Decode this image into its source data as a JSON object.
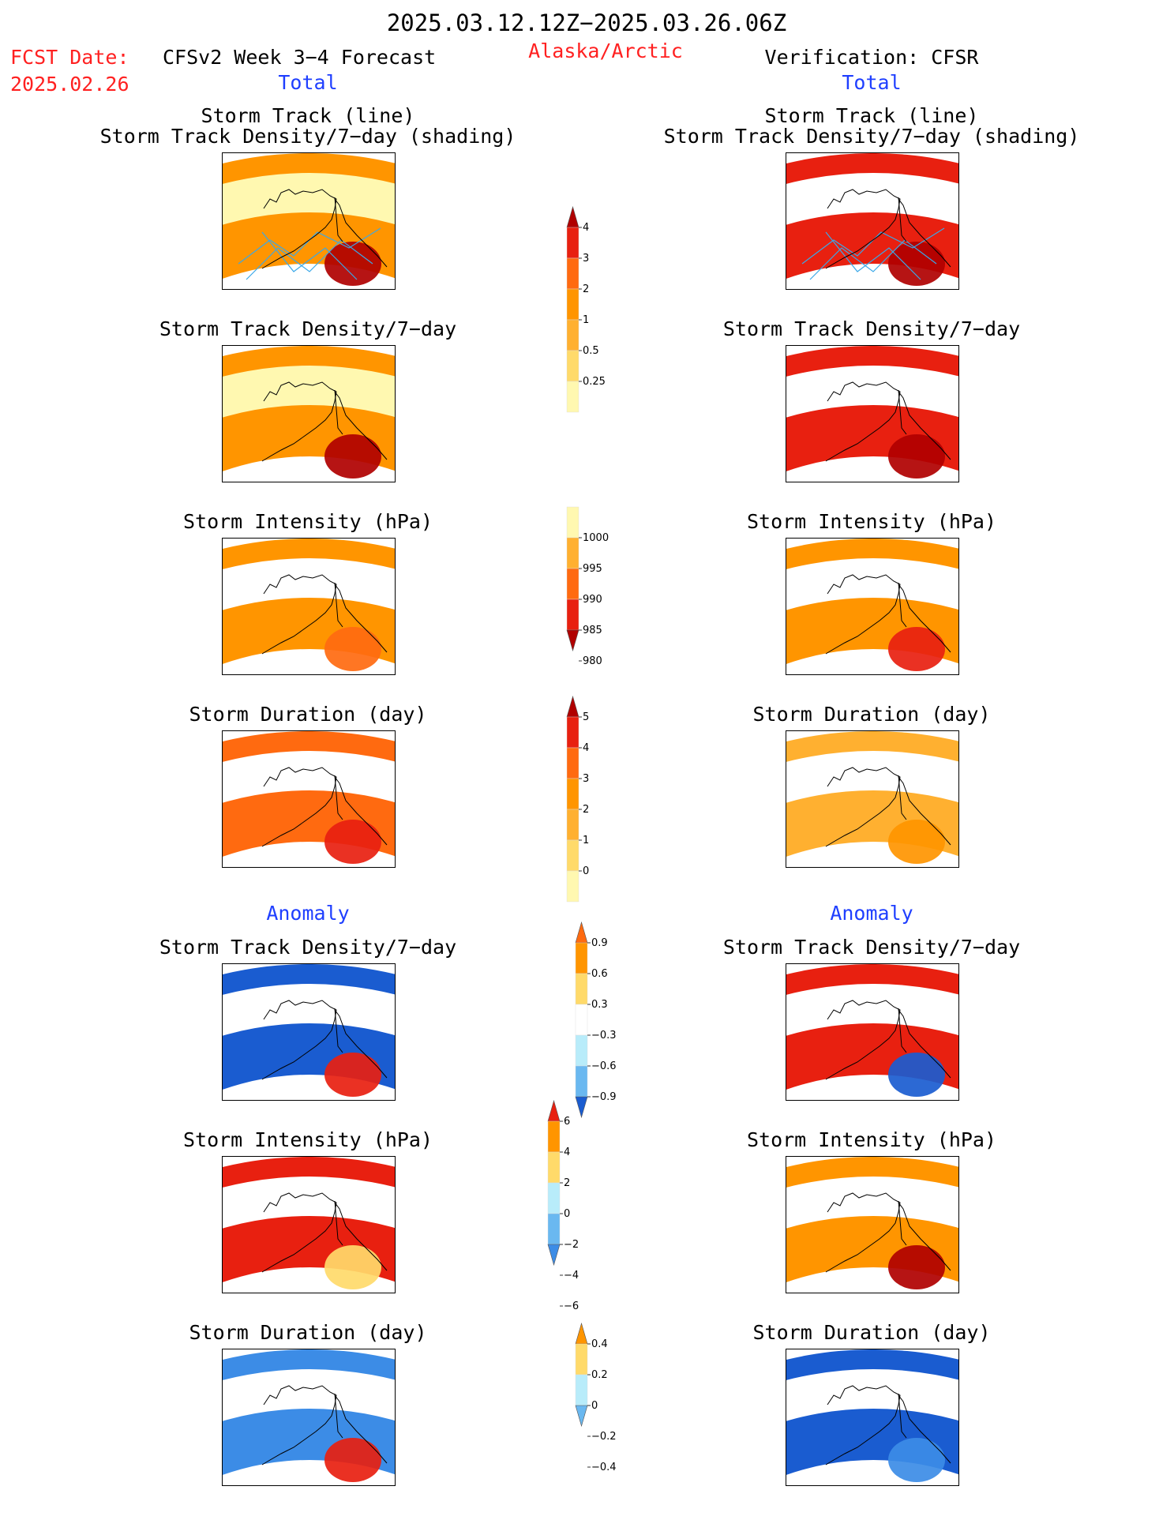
{
  "header": {
    "period": "2025.03.12.12Z−2025.03.26.06Z",
    "fcst_label": "FCST Date:",
    "fcst_date": "2025.02.26",
    "model": "CFSv2 Week 3−4 Forecast",
    "region": "Alaska/Arctic",
    "verification": "Verification: CFSR"
  },
  "sections": {
    "total_left": "Total",
    "total_right": "Total",
    "anomaly_left": "Anomaly",
    "anomaly_right": "Anomaly"
  },
  "panel_titles": {
    "track_line": "Storm Track (line)",
    "track_density_shading": "Storm Track Density/7−day (shading)",
    "track_density": "Storm Track Density/7−day",
    "intensity": "Storm Intensity (hPa)",
    "duration": "Storm Duration (day)"
  },
  "colors": {
    "pale_yellow": "#fff8b0",
    "yellow": "#ffda6a",
    "light_orange": "#ffb030",
    "orange": "#ff9500",
    "dark_orange": "#ff6a10",
    "red": "#e82010",
    "dark_red": "#b00000",
    "light_blue": "#b8ecfa",
    "mid_blue": "#6ab8f0",
    "blue": "#3c8ce6",
    "dark_blue": "#1a5cd0",
    "track_line": "#3aa8e8"
  },
  "chart_data": {
    "type": "heatmap",
    "colorbars": [
      {
        "id": "density_total",
        "ticks": [
          "4",
          "3",
          "2",
          "1",
          "0.5",
          "0.25"
        ],
        "colors": [
          "#b00000",
          "#e82010",
          "#ff6a10",
          "#ff9500",
          "#ffb030",
          "#ffda6a",
          "#fff8b0"
        ],
        "arrow_top": true,
        "arrow_bottom": false
      },
      {
        "id": "intensity_total",
        "ticks": [
          "1000",
          "995",
          "990",
          "985",
          "980"
        ],
        "colors": [
          "#fff8b0",
          "#ffb030",
          "#ff6a10",
          "#e82010",
          "#b00000"
        ],
        "arrow_top": false,
        "arrow_bottom": true
      },
      {
        "id": "duration_total",
        "ticks": [
          "5",
          "4",
          "3",
          "2",
          "1",
          "0"
        ],
        "colors": [
          "#b00000",
          "#e82010",
          "#ff6a10",
          "#ff9500",
          "#ffb030",
          "#ffda6a",
          "#fff8b0"
        ],
        "arrow_top": true,
        "arrow_bottom": false
      },
      {
        "id": "density_anom",
        "ticks": [
          "0.9",
          "0.6",
          "0.3",
          "−0.3",
          "−0.6",
          "−0.9"
        ],
        "colors": [
          "#ff6a10",
          "#ff9500",
          "#ffda6a",
          "#ffffff",
          "#b8ecfa",
          "#6ab8f0",
          "#1a5cd0"
        ],
        "arrow_top": true,
        "arrow_bottom": true
      },
      {
        "id": "intensity_anom",
        "ticks": [
          "6",
          "4",
          "2",
          "0",
          "−2",
          "−4",
          "−6"
        ],
        "colors": [
          "#e82010",
          "#ff9500",
          "#ffda6a",
          "#b8ecfa",
          "#6ab8f0",
          "#3c8ce6"
        ],
        "arrow_top": true,
        "arrow_bottom": true
      },
      {
        "id": "duration_anom",
        "ticks": [
          "0.4",
          "0.2",
          "0",
          "−0.2",
          "−0.4"
        ],
        "colors": [
          "#ff9500",
          "#ffda6a",
          "#b8ecfa",
          "#6ab8f0"
        ],
        "arrow_top": true,
        "arrow_bottom": true
      }
    ],
    "panels": [
      {
        "id": "fcst_track",
        "column": "forecast",
        "dominant": "#ff9500",
        "hot": "#b00000",
        "light": "#fff8b0",
        "tracks": true
      },
      {
        "id": "fcst_density",
        "column": "forecast",
        "dominant": "#ff9500",
        "hot": "#b00000",
        "light": "#fff8b0",
        "tracks": false
      },
      {
        "id": "fcst_intensity",
        "column": "forecast",
        "dominant": "#ff9500",
        "hot": "#ff6a10",
        "light": "#ffffff",
        "tracks": false
      },
      {
        "id": "fcst_duration",
        "column": "forecast",
        "dominant": "#ff6a10",
        "hot": "#e82010",
        "light": "#ffffff",
        "tracks": false
      },
      {
        "id": "fcst_density_anom",
        "column": "forecast",
        "dominant": "#1a5cd0",
        "hot": "#e82010",
        "light": "#ffffff",
        "tracks": false
      },
      {
        "id": "fcst_intensity_anom",
        "column": "forecast",
        "dominant": "#e82010",
        "hot": "#ffda6a",
        "light": "#ffffff",
        "tracks": false
      },
      {
        "id": "fcst_duration_anom",
        "column": "forecast",
        "dominant": "#3c8ce6",
        "hot": "#e82010",
        "light": "#ffffff",
        "tracks": false
      },
      {
        "id": "ver_track",
        "column": "verification",
        "dominant": "#e82010",
        "hot": "#b00000",
        "light": "#ffffff",
        "tracks": true
      },
      {
        "id": "ver_density",
        "column": "verification",
        "dominant": "#e82010",
        "hot": "#b00000",
        "light": "#ffffff",
        "tracks": false
      },
      {
        "id": "ver_intensity",
        "column": "verification",
        "dominant": "#ff9500",
        "hot": "#e82010",
        "light": "#ffffff",
        "tracks": false
      },
      {
        "id": "ver_duration",
        "column": "verification",
        "dominant": "#ffb030",
        "hot": "#ff9500",
        "light": "#ffffff",
        "tracks": false
      },
      {
        "id": "ver_density_anom",
        "column": "verification",
        "dominant": "#e82010",
        "hot": "#1a5cd0",
        "light": "#ffffff",
        "tracks": false
      },
      {
        "id": "ver_intensity_anom",
        "column": "verification",
        "dominant": "#ff9500",
        "hot": "#b00000",
        "light": "#ffffff",
        "tracks": false
      },
      {
        "id": "ver_duration_anom",
        "column": "verification",
        "dominant": "#1a5cd0",
        "hot": "#3c8ce6",
        "light": "#ffffff",
        "tracks": false
      }
    ]
  }
}
